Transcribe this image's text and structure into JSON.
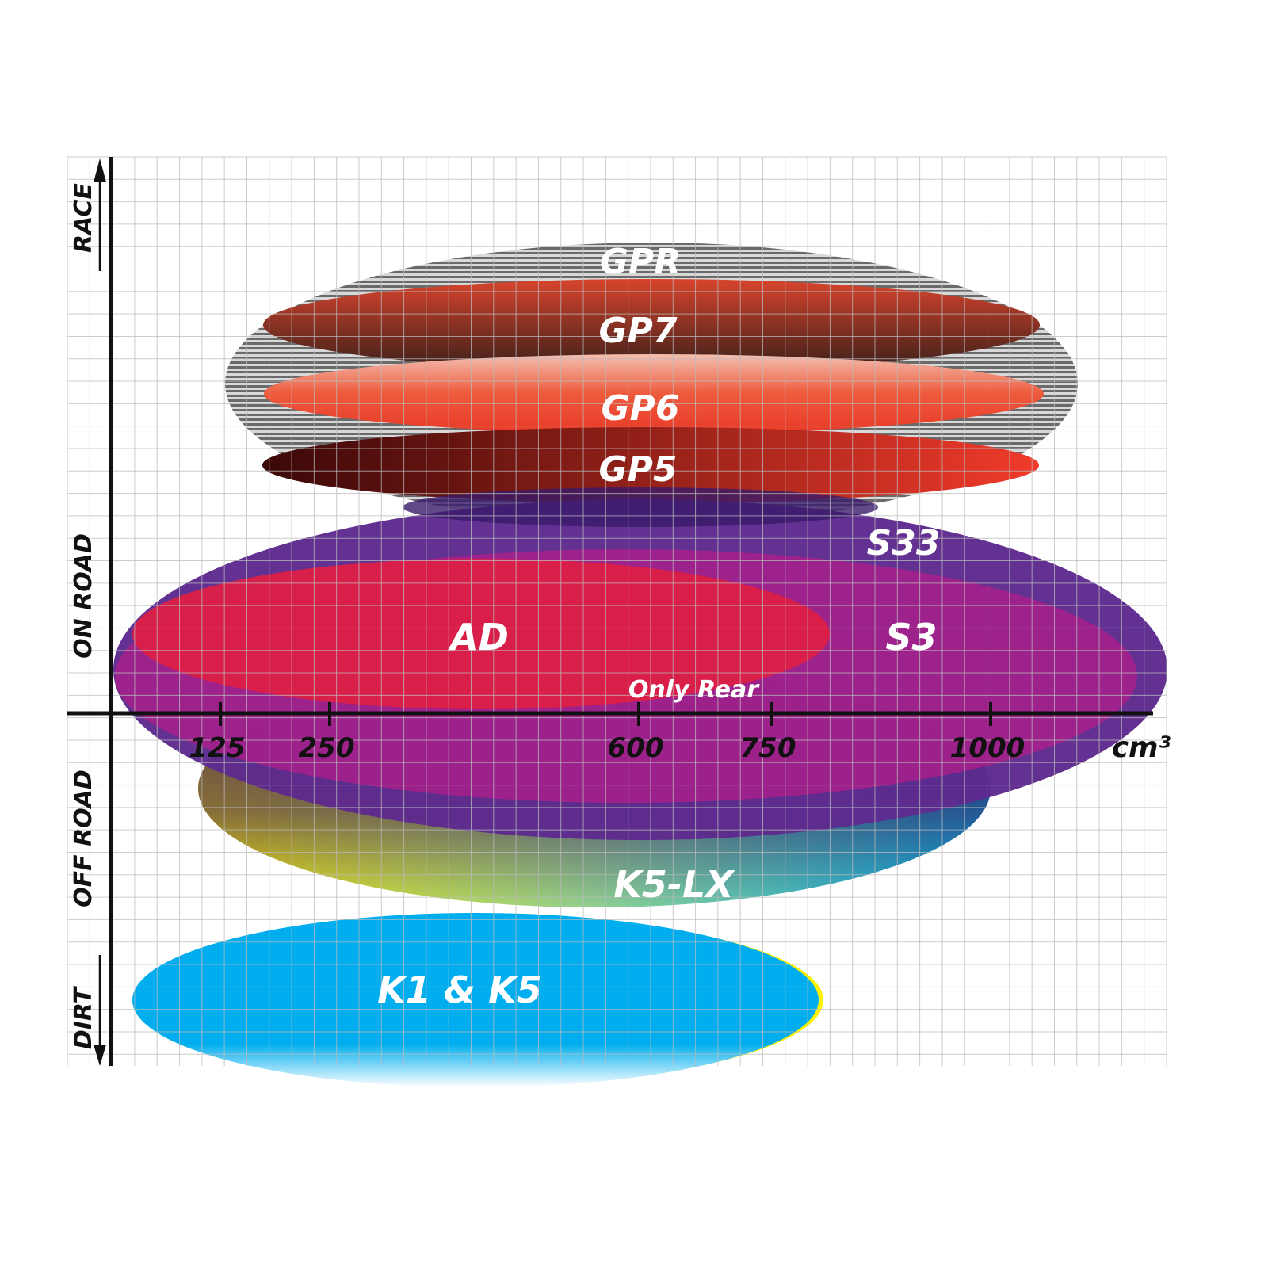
{
  "chart_data": {
    "type": "area",
    "title": "",
    "xlabel": "cm³",
    "x_ticks": [
      "125",
      "250",
      "600",
      "750",
      "1000"
    ],
    "y_categories": [
      "RACE",
      "ON ROAD",
      "OFF ROAD",
      "DIRT"
    ],
    "grid": true,
    "series": [
      {
        "name": "GPR",
        "color": "#8a8a8a"
      },
      {
        "name": "GP7",
        "color": "#7a3a2a"
      },
      {
        "name": "GP6",
        "color": "#e8452e"
      },
      {
        "name": "GP5",
        "color": "#b0201a"
      },
      {
        "name": "S33",
        "color": "#5e2a8e"
      },
      {
        "name": "S3",
        "color": "#a0208a"
      },
      {
        "name": "AD",
        "color": "#e01e44"
      },
      {
        "name": "K5-LX",
        "color": "#20b8d8"
      },
      {
        "name": "K1 & K5",
        "color": "#00aeef"
      }
    ],
    "annotations": [
      "Only Rear"
    ]
  }
}
